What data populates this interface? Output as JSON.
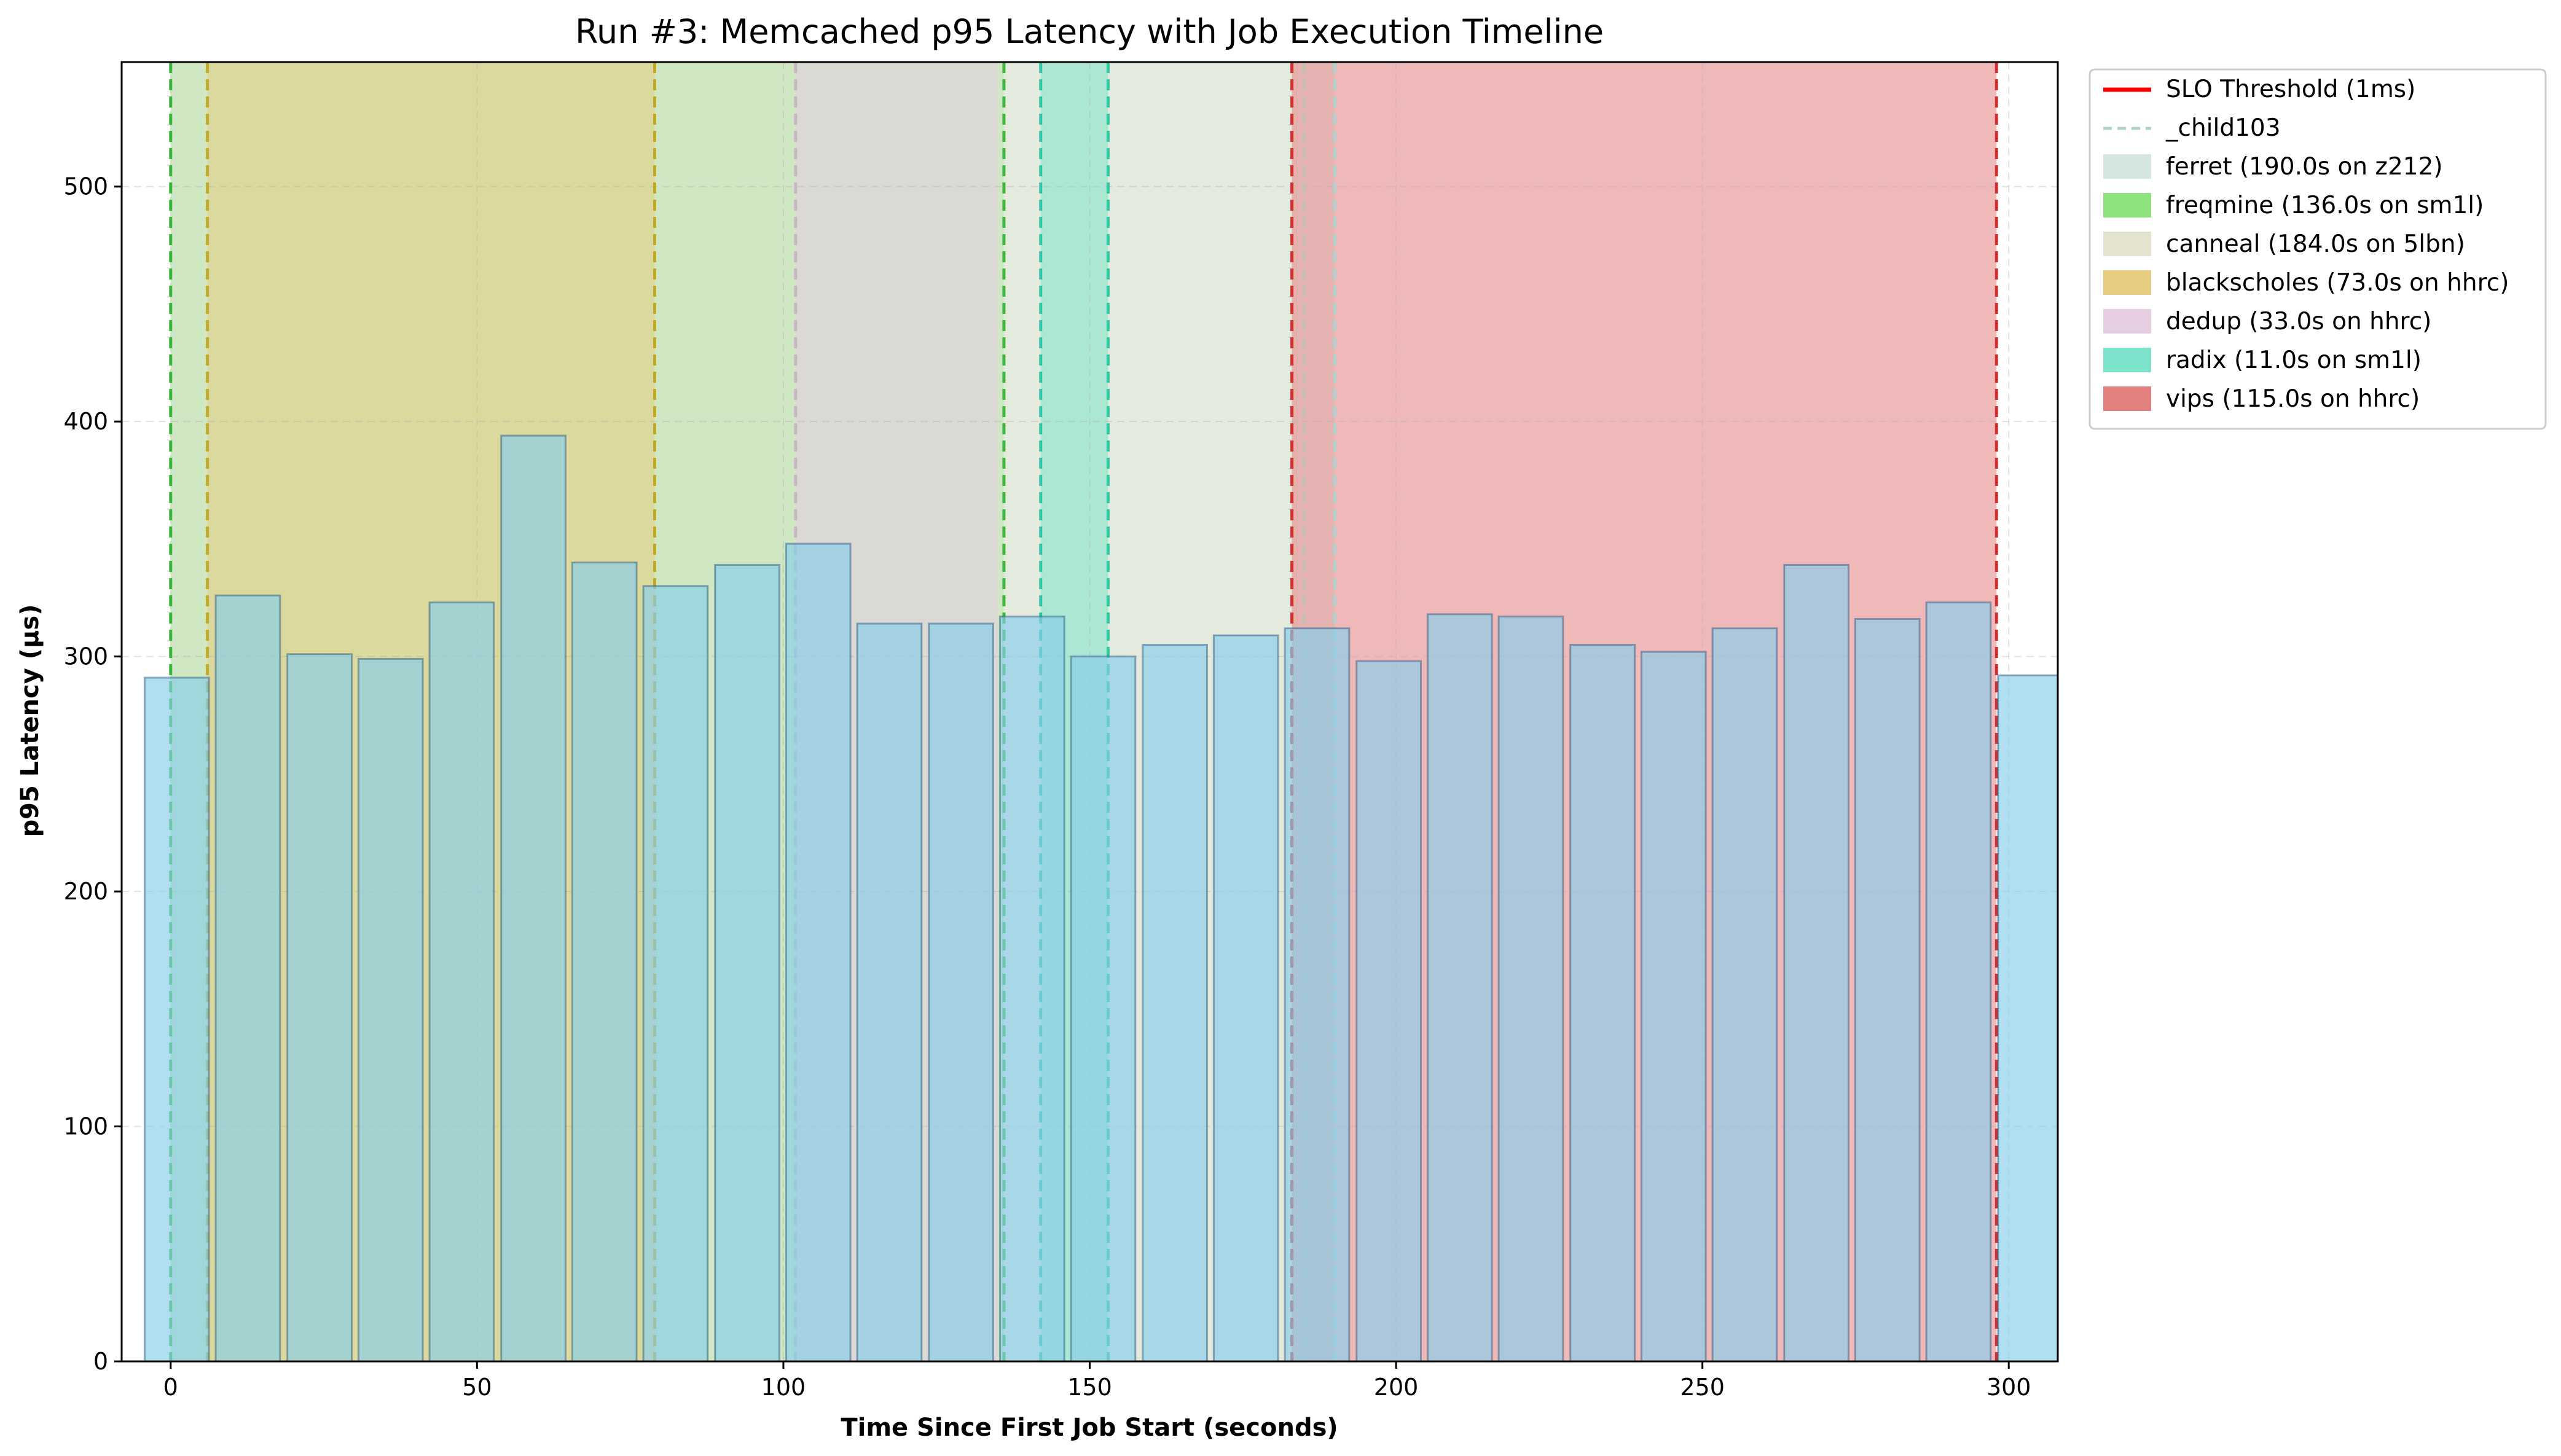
{
  "chart_data": {
    "type": "bar",
    "title": "Run #3: Memcached p95 Latency with Job Execution Timeline",
    "xlabel": "Time Since First Job Start (seconds)",
    "ylabel": "p95 Latency (µs)",
    "xlim": [
      -8,
      308
    ],
    "ylim": [
      0,
      553
    ],
    "xticks": [
      0,
      50,
      100,
      150,
      200,
      250,
      300
    ],
    "yticks": [
      0,
      100,
      200,
      300,
      400,
      500
    ],
    "grid": true,
    "legend_position": "outside-right",
    "bar_width": 10.5,
    "bar_color": "#87ceeb",
    "bars": [
      {
        "x": 1,
        "y": 291
      },
      {
        "x": 12.6,
        "y": 326
      },
      {
        "x": 24.3,
        "y": 301
      },
      {
        "x": 35.9,
        "y": 299
      },
      {
        "x": 47.5,
        "y": 323
      },
      {
        "x": 59.2,
        "y": 394
      },
      {
        "x": 70.8,
        "y": 340
      },
      {
        "x": 82.4,
        "y": 330
      },
      {
        "x": 94.1,
        "y": 339
      },
      {
        "x": 105.7,
        "y": 348
      },
      {
        "x": 117.3,
        "y": 314
      },
      {
        "x": 129,
        "y": 314
      },
      {
        "x": 140.6,
        "y": 317
      },
      {
        "x": 152.2,
        "y": 300
      },
      {
        "x": 163.9,
        "y": 305
      },
      {
        "x": 175.5,
        "y": 309
      },
      {
        "x": 187.1,
        "y": 312
      },
      {
        "x": 198.8,
        "y": 298
      },
      {
        "x": 210.4,
        "y": 318
      },
      {
        "x": 222,
        "y": 317
      },
      {
        "x": 233.7,
        "y": 305
      },
      {
        "x": 245.3,
        "y": 302
      },
      {
        "x": 256.9,
        "y": 312
      },
      {
        "x": 268.6,
        "y": 339
      },
      {
        "x": 280.2,
        "y": 316
      },
      {
        "x": 291.8,
        "y": 323
      },
      {
        "x": 303.5,
        "y": 292
      }
    ],
    "slo_threshold": {
      "label": "SLO Threshold (1ms)",
      "value_us": 1000,
      "color": "#ff0000"
    },
    "jobs": [
      {
        "name": "_child103",
        "label": "_child103",
        "start": 190,
        "end": 190,
        "color": "#b0d4cc",
        "span": false
      },
      {
        "name": "ferret",
        "label": "ferret (190.0s on z212)",
        "start": 0,
        "end": 190,
        "color": "#d4e6e1"
      },
      {
        "name": "freqmine",
        "label": "freqmine (136.0s on sm1l)",
        "start": 0,
        "end": 136,
        "color": "#8ee37f"
      },
      {
        "name": "canneal",
        "label": "canneal (184.0s on 5lbn)",
        "start": 0,
        "end": 184,
        "color": "#e3e3cf"
      },
      {
        "name": "blackscholes",
        "label": "blackscholes (73.0s on hhrc)",
        "start": 6,
        "end": 79,
        "color": "#e6cd80"
      },
      {
        "name": "dedup",
        "label": "dedup (33.0s on hhrc)",
        "start": 102,
        "end": 135,
        "color": "#e5cde2"
      },
      {
        "name": "radix",
        "label": "radix (11.0s on sm1l)",
        "start": 142,
        "end": 153,
        "color": "#7ee3cc"
      },
      {
        "name": "vips",
        "label": "vips (115.0s on hhrc)",
        "start": 183,
        "end": 298,
        "color": "#e38080"
      }
    ],
    "vlines": [
      {
        "x": 0,
        "color": "#3cb83c"
      },
      {
        "x": 6,
        "color": "#c3a92a"
      },
      {
        "x": 79,
        "color": "#c3a92a"
      },
      {
        "x": 102,
        "color": "#c8b7c4"
      },
      {
        "x": 136,
        "color": "#3cb83c"
      },
      {
        "x": 142,
        "color": "#2ec8a4"
      },
      {
        "x": 153,
        "color": "#2ec8a4"
      },
      {
        "x": 183,
        "color": "#d43030"
      },
      {
        "x": 185,
        "color": "#c4c2ae"
      },
      {
        "x": 190,
        "color": "#b0d4cc"
      },
      {
        "x": 298,
        "color": "#d43030"
      }
    ]
  }
}
